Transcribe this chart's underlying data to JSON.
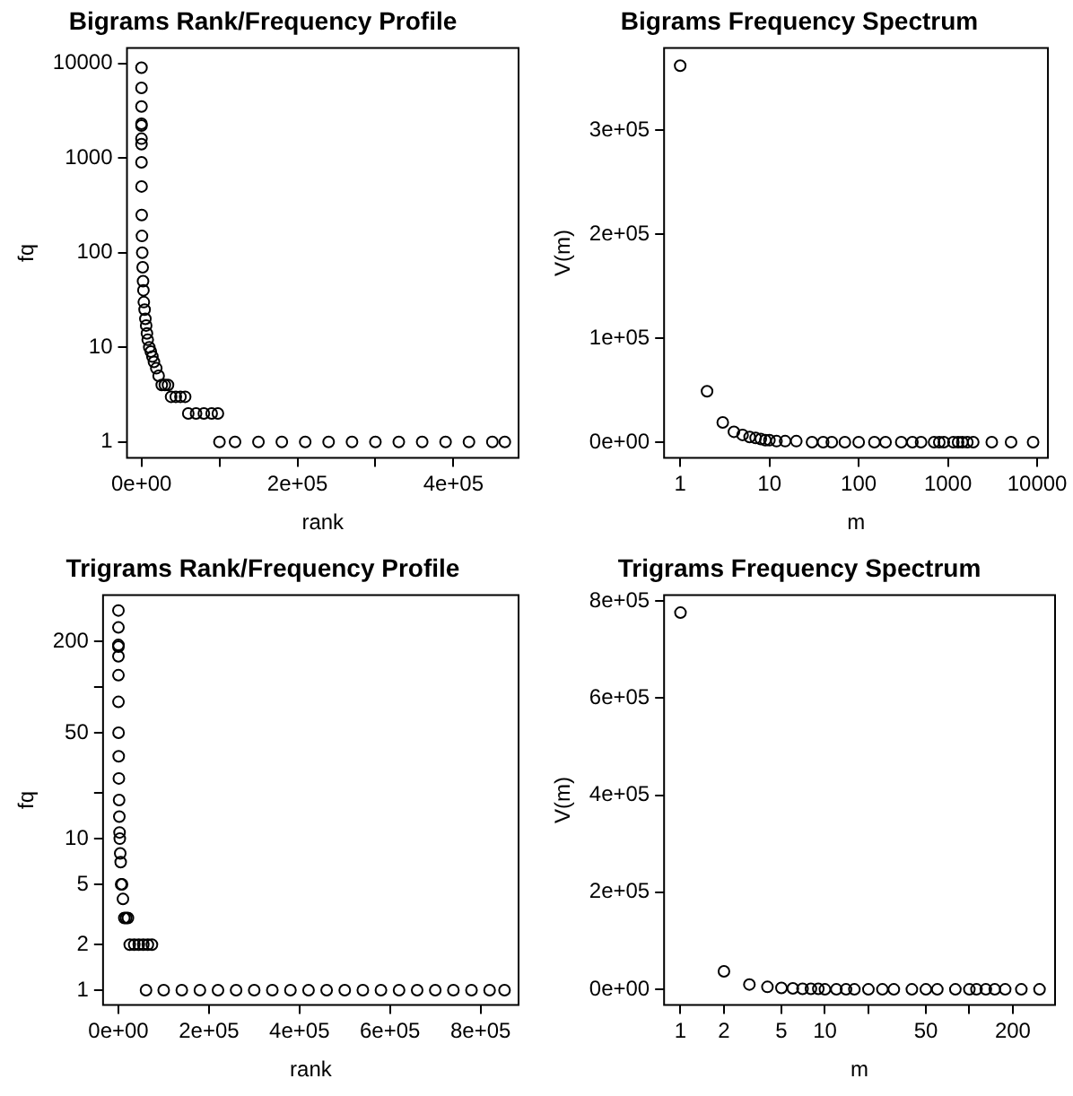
{
  "chart_data": [
    {
      "type": "scatter",
      "title": "Bigrams Rank/Frequency Profile",
      "xlabel": "rank",
      "ylabel": "fq",
      "log": "y",
      "marker": "circle",
      "xlim": [
        -18600,
        483600
      ],
      "ylim": [
        0.68,
        14500
      ],
      "xticks": [
        {
          "value": 0,
          "label": "0e+00"
        },
        {
          "value": 100000,
          "label": null
        },
        {
          "value": 200000,
          "label": "2e+05"
        },
        {
          "value": 300000,
          "label": null
        },
        {
          "value": 400000,
          "label": "4e+05"
        }
      ],
      "yticks": [
        1,
        10,
        100,
        1000,
        10000
      ],
      "series": [
        {
          "color": "#000000",
          "x": [
            1,
            2,
            3,
            4,
            5,
            6,
            10,
            30,
            100,
            300,
            600,
            1000,
            1500,
            2000,
            2500,
            3000,
            4000,
            5000,
            6000,
            7000,
            8000,
            10000,
            12000,
            14000,
            16000,
            19000,
            22000,
            26000,
            30000,
            34000,
            38000,
            44000,
            50000,
            56000,
            60000,
            70000,
            80000,
            90000,
            98000,
            100000,
            120000,
            150000,
            180000,
            210000,
            240000,
            270000,
            300000,
            330000,
            360000,
            390000,
            420000,
            450000,
            466000
          ],
          "values": [
            9000,
            5500,
            3500,
            2300,
            2200,
            1600,
            1400,
            900,
            500,
            250,
            150,
            100,
            70,
            50,
            40,
            30,
            25,
            20,
            17,
            14,
            12,
            10,
            9,
            8,
            7,
            6,
            5,
            4,
            4,
            4,
            3,
            3,
            3,
            3,
            2,
            2,
            2,
            2,
            2,
            1,
            1,
            1,
            1,
            1,
            1,
            1,
            1,
            1,
            1,
            1,
            1,
            1,
            1
          ]
        }
      ]
    },
    {
      "type": "scatter",
      "title": "Bigrams Frequency Spectrum",
      "xlabel": "m",
      "ylabel": "V(m)",
      "log": "x",
      "marker": "circle",
      "xlim": [
        0.66,
        13200
      ],
      "ylim": [
        -15000,
        379000
      ],
      "xticks": [
        1,
        10,
        100,
        1000,
        10000
      ],
      "yticks": [
        {
          "value": 0,
          "label": "0e+00"
        },
        {
          "value": 100000,
          "label": "1e+05"
        },
        {
          "value": 200000,
          "label": "2e+05"
        },
        {
          "value": 300000,
          "label": "3e+05"
        }
      ],
      "series": [
        {
          "color": "#000000",
          "x": [
            1,
            2,
            3,
            4,
            5,
            6,
            7,
            8,
            9,
            10,
            12,
            15,
            20,
            30,
            40,
            50,
            70,
            100,
            150,
            200,
            300,
            400,
            500,
            700,
            800,
            900,
            1150,
            1300,
            1450,
            1650,
            1920,
            3100,
            5100,
            9000
          ],
          "values": [
            362000,
            49000,
            19000,
            10000,
            7000,
            5000,
            4000,
            3000,
            2000,
            2000,
            1000,
            1000,
            1000,
            0,
            0,
            0,
            0,
            0,
            0,
            0,
            0,
            0,
            0,
            0,
            0,
            0,
            0,
            0,
            0,
            0,
            0,
            0,
            0,
            0
          ]
        }
      ]
    },
    {
      "type": "scatter",
      "title": "Trigrams Rank/Frequency Profile",
      "xlabel": "rank",
      "ylabel": "fq",
      "log": "y",
      "marker": "circle",
      "xlim": [
        -34000,
        884000
      ],
      "ylim": [
        0.8,
        405
      ],
      "xticks": [
        {
          "value": 0,
          "label": "0e+00"
        },
        {
          "value": 200000,
          "label": "2e+05"
        },
        {
          "value": 400000,
          "label": "4e+05"
        },
        {
          "value": 600000,
          "label": "6e+05"
        },
        {
          "value": 800000,
          "label": "8e+05"
        }
      ],
      "yticks": [
        1,
        2,
        5,
        10,
        {
          "value": 20,
          "label": null
        },
        50,
        {
          "value": 100,
          "label": null
        },
        200
      ],
      "series": [
        {
          "color": "#000000",
          "x": [
            1,
            2,
            3,
            5,
            10,
            30,
            100,
            300,
            600,
            1000,
            1500,
            2000,
            2500,
            3000,
            4000,
            5000,
            6000,
            8000,
            10000,
            13000,
            17000,
            21000,
            25000,
            35000,
            45000,
            55000,
            65000,
            74000,
            61000,
            100000,
            140000,
            180000,
            220000,
            260000,
            300000,
            340000,
            380000,
            420000,
            460000,
            500000,
            540000,
            580000,
            620000,
            660000,
            700000,
            740000,
            780000,
            820000,
            853000
          ],
          "values": [
            321,
            248,
            190,
            185,
            160,
            120,
            80,
            50,
            35,
            25,
            18,
            14,
            11,
            10,
            8,
            7,
            5,
            5,
            4,
            3,
            3,
            3,
            2,
            2,
            2,
            2,
            2,
            2,
            1,
            1,
            1,
            1,
            1,
            1,
            1,
            1,
            1,
            1,
            1,
            1,
            1,
            1,
            1,
            1,
            1,
            1,
            1,
            1,
            1
          ]
        }
      ]
    },
    {
      "type": "scatter",
      "title": "Trigrams Frequency Spectrum",
      "xlabel": "m",
      "ylabel": "V(m)",
      "log": "x",
      "marker": "circle",
      "xlim": [
        0.77,
        392
      ],
      "ylim": [
        -32000,
        812000
      ],
      "xticks": [
        1,
        2,
        5,
        10,
        {
          "value": 20,
          "label": null
        },
        50,
        {
          "value": 100,
          "label": null
        },
        200
      ],
      "yticks": [
        {
          "value": 0,
          "label": "0e+00"
        },
        {
          "value": 200000,
          "label": "2e+05"
        },
        {
          "value": 400000,
          "label": "4e+05"
        },
        {
          "value": 600000,
          "label": "6e+05"
        },
        {
          "value": 800000,
          "label": "8e+05"
        }
      ],
      "series": [
        {
          "color": "#000000",
          "x": [
            1,
            2,
            3,
            4,
            5,
            6,
            7,
            8,
            9,
            10,
            12,
            14,
            16,
            20,
            25,
            30,
            40,
            50,
            60,
            80,
            100,
            112,
            130,
            150,
            177,
            229,
            306
          ],
          "values": [
            776000,
            37000,
            10000,
            5000,
            3000,
            2000,
            1000,
            1000,
            1000,
            0,
            0,
            0,
            0,
            0,
            0,
            0,
            0,
            0,
            0,
            0,
            0,
            0,
            0,
            0,
            0,
            0,
            0
          ]
        }
      ]
    }
  ]
}
